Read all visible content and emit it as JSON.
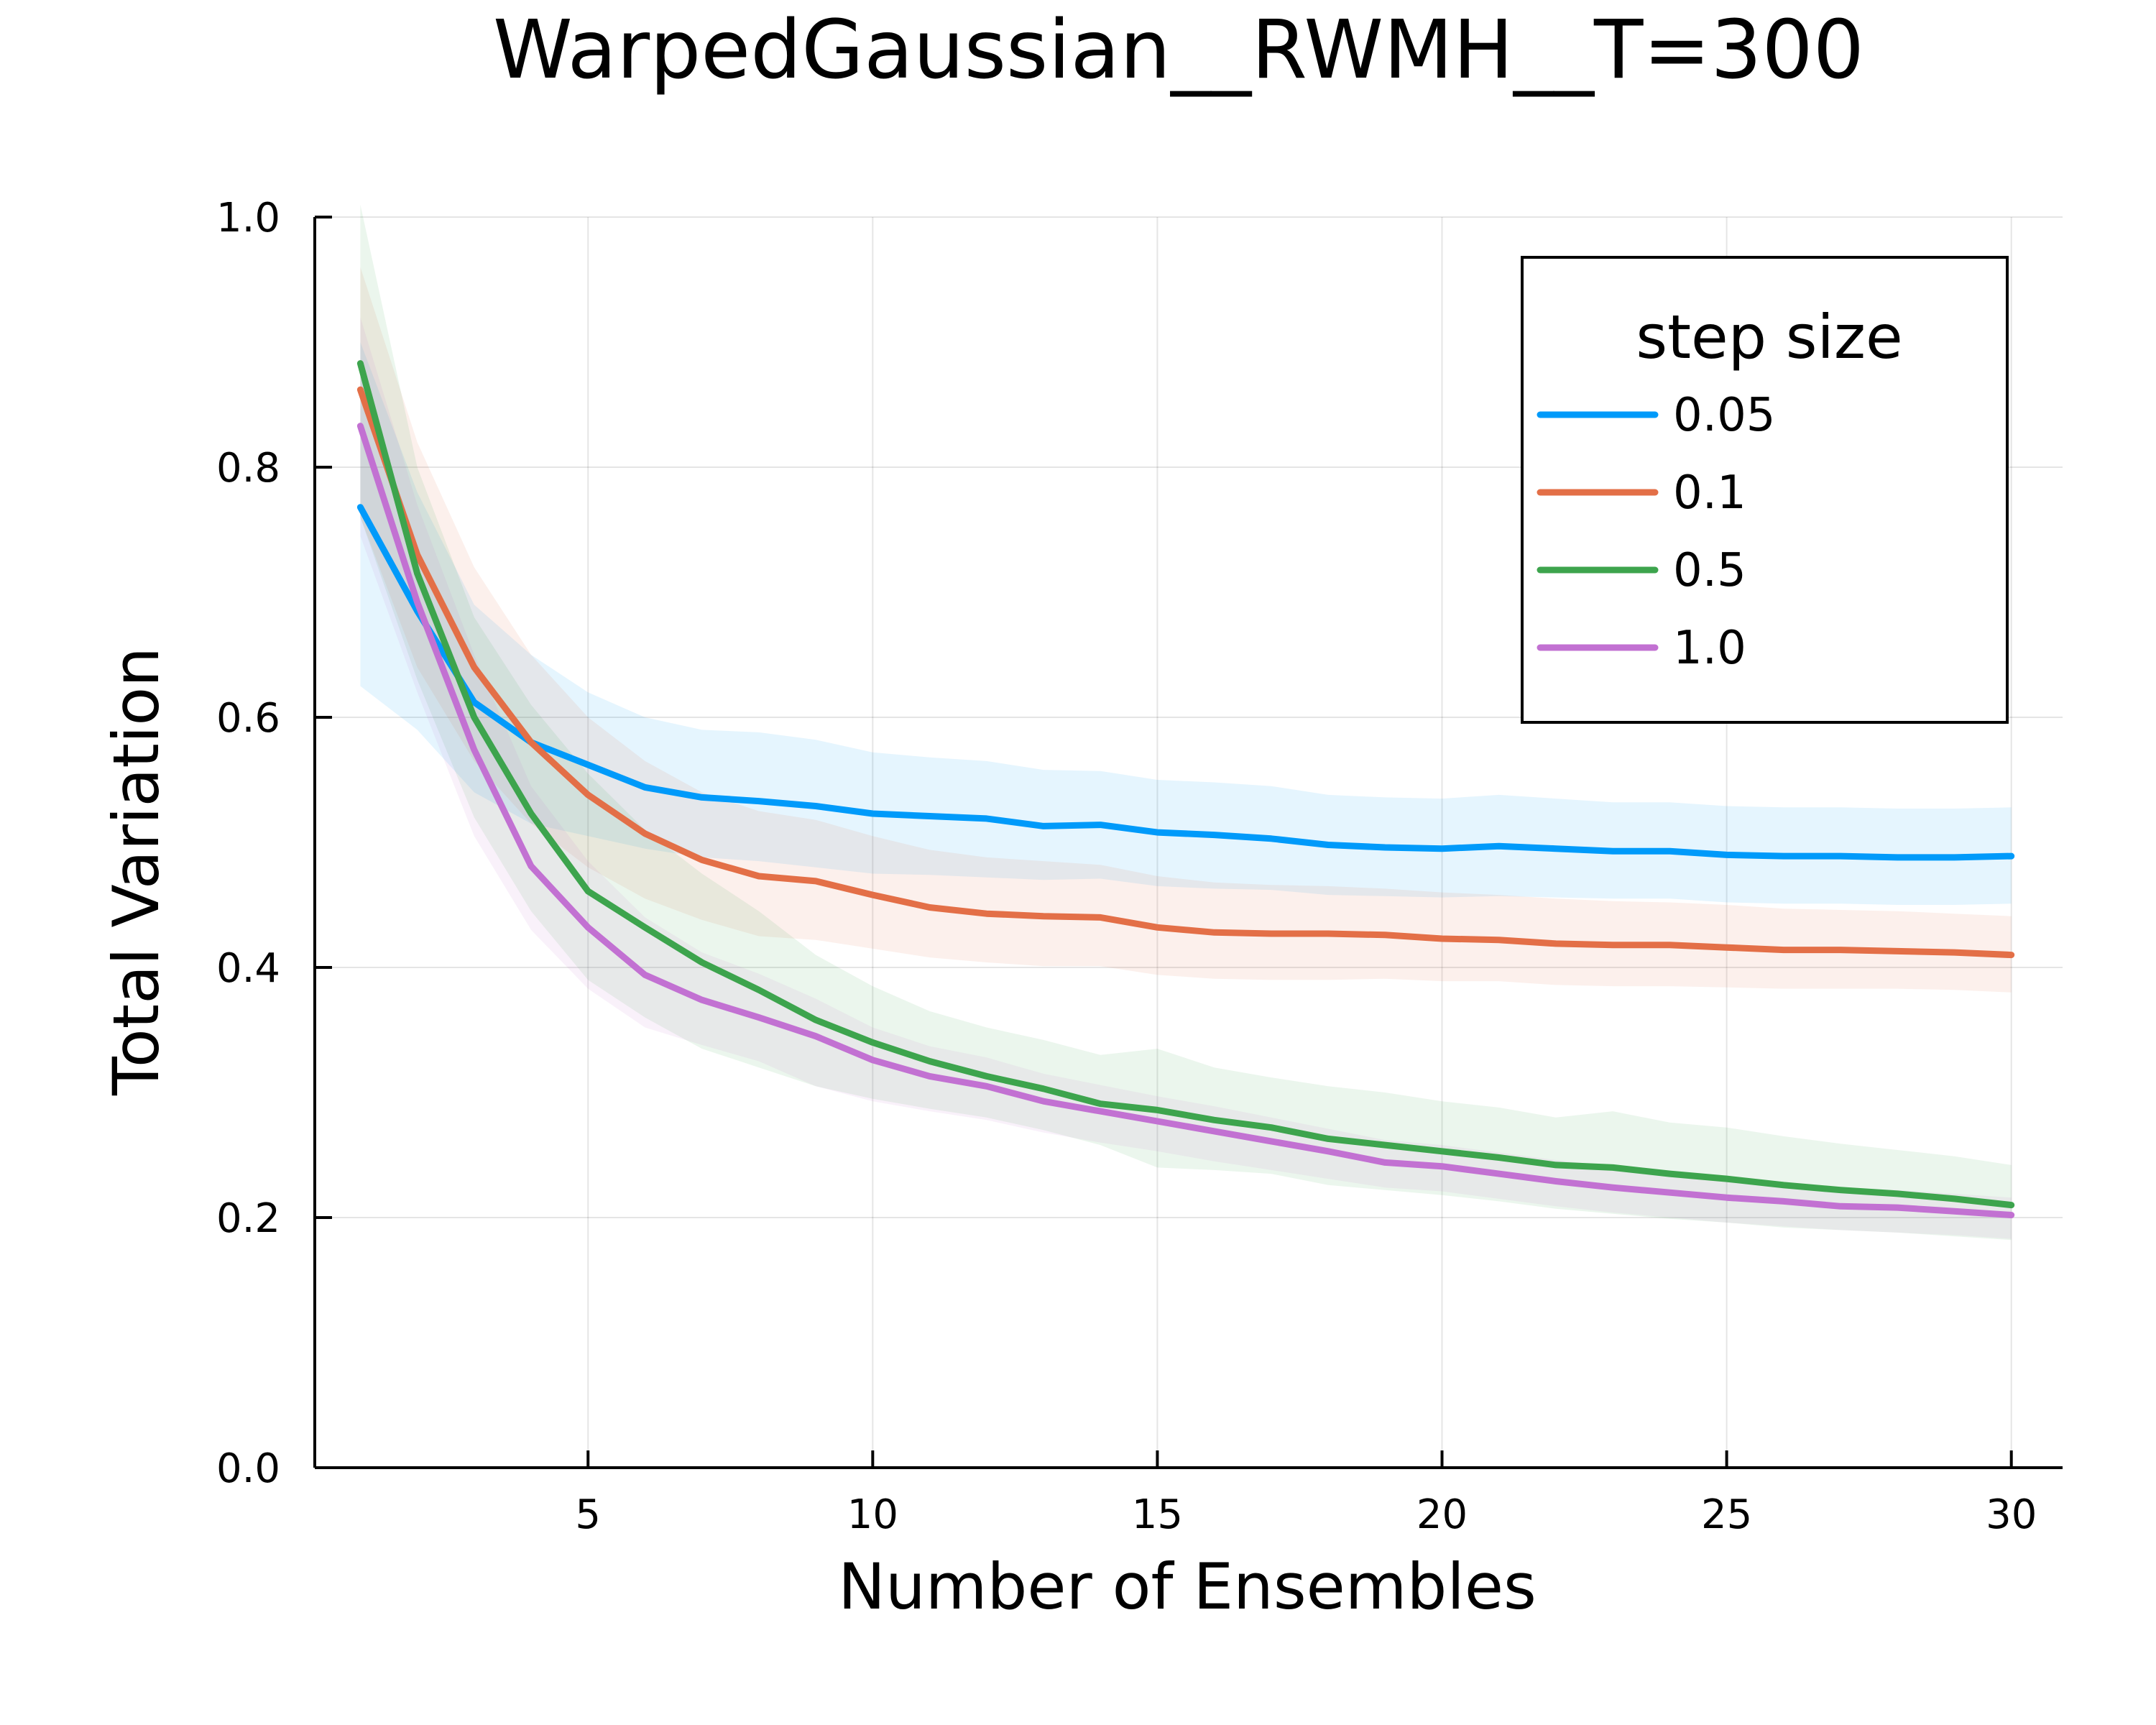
{
  "chart_data": {
    "type": "line",
    "title": "WarpedGaussian__RWMH__T=300",
    "xlabel": "Number of Ensembles",
    "ylabel": "Total Variation",
    "xlim": [
      0.2,
      30.9
    ],
    "ylim": [
      0,
      1
    ],
    "xticks": [
      5,
      10,
      15,
      20,
      25,
      30
    ],
    "yticks": [
      "0.0",
      "0.2",
      "0.4",
      "0.6",
      "0.8",
      "1.0"
    ],
    "grid": true,
    "legend": {
      "title": "step size",
      "placement": "top-right"
    },
    "x": [
      1,
      2,
      3,
      4,
      5,
      6,
      7,
      8,
      9,
      10,
      11,
      12,
      13,
      14,
      15,
      16,
      17,
      18,
      19,
      20,
      21,
      22,
      23,
      24,
      25,
      26,
      27,
      28,
      29,
      30
    ],
    "series": [
      {
        "name": "0.05",
        "color": "#009AFA",
        "values": [
          0.768,
          0.685,
          0.612,
          0.58,
          0.562,
          0.544,
          0.536,
          0.533,
          0.529,
          0.523,
          0.521,
          0.519,
          0.513,
          0.514,
          0.508,
          0.506,
          0.503,
          0.498,
          0.496,
          0.495,
          0.497,
          0.495,
          0.493,
          0.493,
          0.49,
          0.489,
          0.489,
          0.488,
          0.488,
          0.489
        ],
        "upper": [
          0.9,
          0.78,
          0.69,
          0.65,
          0.62,
          0.6,
          0.59,
          0.588,
          0.582,
          0.572,
          0.568,
          0.565,
          0.558,
          0.557,
          0.55,
          0.548,
          0.545,
          0.538,
          0.536,
          0.535,
          0.538,
          0.535,
          0.532,
          0.532,
          0.529,
          0.528,
          0.528,
          0.527,
          0.527,
          0.528
        ],
        "lower": [
          0.625,
          0.59,
          0.54,
          0.515,
          0.505,
          0.495,
          0.488,
          0.485,
          0.48,
          0.475,
          0.474,
          0.472,
          0.47,
          0.471,
          0.465,
          0.463,
          0.462,
          0.458,
          0.457,
          0.456,
          0.457,
          0.456,
          0.455,
          0.455,
          0.452,
          0.451,
          0.451,
          0.45,
          0.45,
          0.451
        ]
      },
      {
        "name": "0.1",
        "color": "#E36F47",
        "values": [
          0.862,
          0.73,
          0.64,
          0.58,
          0.538,
          0.507,
          0.486,
          0.473,
          0.469,
          0.458,
          0.448,
          0.443,
          0.441,
          0.44,
          0.432,
          0.428,
          0.427,
          0.427,
          0.426,
          0.423,
          0.422,
          0.419,
          0.418,
          0.418,
          0.416,
          0.414,
          0.414,
          0.413,
          0.412,
          0.41
        ],
        "upper": [
          0.96,
          0.82,
          0.72,
          0.65,
          0.6,
          0.565,
          0.54,
          0.525,
          0.518,
          0.505,
          0.494,
          0.488,
          0.485,
          0.482,
          0.473,
          0.468,
          0.466,
          0.465,
          0.463,
          0.46,
          0.458,
          0.455,
          0.453,
          0.452,
          0.45,
          0.447,
          0.446,
          0.445,
          0.443,
          0.441
        ],
        "lower": [
          0.76,
          0.64,
          0.565,
          0.515,
          0.48,
          0.455,
          0.438,
          0.425,
          0.422,
          0.415,
          0.408,
          0.404,
          0.401,
          0.401,
          0.394,
          0.391,
          0.39,
          0.39,
          0.391,
          0.389,
          0.389,
          0.386,
          0.385,
          0.385,
          0.384,
          0.383,
          0.383,
          0.383,
          0.382,
          0.38
        ]
      },
      {
        "name": "0.5",
        "color": "#3DA44D",
        "values": [
          0.883,
          0.715,
          0.6,
          0.523,
          0.461,
          0.432,
          0.404,
          0.382,
          0.358,
          0.34,
          0.325,
          0.313,
          0.303,
          0.291,
          0.286,
          0.278,
          0.272,
          0.263,
          0.258,
          0.253,
          0.248,
          0.242,
          0.24,
          0.235,
          0.231,
          0.226,
          0.222,
          0.219,
          0.215,
          0.21
        ],
        "upper": [
          1.01,
          0.8,
          0.68,
          0.61,
          0.555,
          0.51,
          0.475,
          0.445,
          0.41,
          0.385,
          0.365,
          0.352,
          0.342,
          0.33,
          0.335,
          0.32,
          0.312,
          0.305,
          0.3,
          0.293,
          0.288,
          0.28,
          0.285,
          0.276,
          0.272,
          0.265,
          0.259,
          0.254,
          0.249,
          0.242
        ],
        "lower": [
          0.76,
          0.63,
          0.52,
          0.445,
          0.39,
          0.36,
          0.335,
          0.32,
          0.305,
          0.295,
          0.287,
          0.28,
          0.27,
          0.258,
          0.24,
          0.238,
          0.235,
          0.226,
          0.222,
          0.218,
          0.213,
          0.207,
          0.203,
          0.199,
          0.196,
          0.192,
          0.19,
          0.188,
          0.185,
          0.182
        ]
      },
      {
        "name": "1.0",
        "color": "#C271D2",
        "values": [
          0.833,
          0.692,
          0.574,
          0.481,
          0.432,
          0.394,
          0.374,
          0.36,
          0.345,
          0.326,
          0.313,
          0.305,
          0.293,
          0.285,
          0.277,
          0.269,
          0.261,
          0.253,
          0.244,
          0.241,
          0.235,
          0.229,
          0.224,
          0.22,
          0.216,
          0.213,
          0.209,
          0.208,
          0.205,
          0.202
        ],
        "upper": [
          0.92,
          0.77,
          0.65,
          0.545,
          0.485,
          0.44,
          0.412,
          0.395,
          0.375,
          0.352,
          0.337,
          0.328,
          0.315,
          0.306,
          0.297,
          0.289,
          0.28,
          0.271,
          0.262,
          0.258,
          0.252,
          0.246,
          0.241,
          0.236,
          0.232,
          0.228,
          0.224,
          0.222,
          0.219,
          0.216
        ],
        "lower": [
          0.745,
          0.62,
          0.505,
          0.43,
          0.383,
          0.352,
          0.338,
          0.325,
          0.305,
          0.293,
          0.285,
          0.278,
          0.268,
          0.26,
          0.253,
          0.245,
          0.238,
          0.231,
          0.224,
          0.221,
          0.215,
          0.209,
          0.204,
          0.2,
          0.196,
          0.193,
          0.19,
          0.188,
          0.186,
          0.183
        ]
      }
    ]
  }
}
